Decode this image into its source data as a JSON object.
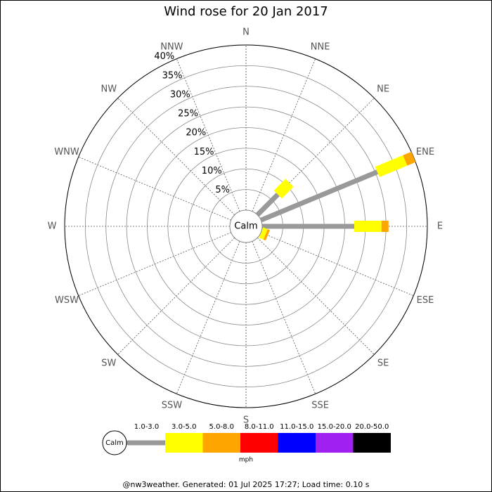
{
  "chart_data": {
    "type": "windrose",
    "title": "Wind rose for 20 Jan 2017",
    "categories": [
      "N",
      "NNE",
      "NE",
      "ENE",
      "E",
      "ESE",
      "SE",
      "SSE",
      "S",
      "SSW",
      "SW",
      "WSW",
      "W",
      "WNW",
      "NW",
      "NNW"
    ],
    "calm_label": "Calm",
    "unit": "mph",
    "rlim": [
      0,
      40
    ],
    "rticks": [
      {
        "value": 5,
        "label": "5%"
      },
      {
        "value": 10,
        "label": "10%"
      },
      {
        "value": 15,
        "label": "15%"
      },
      {
        "value": 20,
        "label": "20%"
      },
      {
        "value": 25,
        "label": "25%"
      },
      {
        "value": 30,
        "label": "30%"
      },
      {
        "value": 35,
        "label": "35%"
      },
      {
        "value": 40,
        "label": "40%"
      }
    ],
    "series": [
      {
        "name": "1.0-3.0",
        "color": "#999999",
        "values": [
          0,
          0,
          7,
          30.5,
          22.3,
          0,
          0,
          0,
          0,
          0,
          0,
          0,
          0,
          0,
          0,
          0
        ]
      },
      {
        "name": "3.0-5.0",
        "color": "#ffff00",
        "values": [
          0,
          0,
          4,
          7.3,
          6.6,
          1.2,
          0,
          0,
          0,
          0,
          0,
          0,
          0,
          0,
          0,
          0
        ]
      },
      {
        "name": "5.0-8.0",
        "color": "#ffa500",
        "values": [
          0,
          0,
          0,
          2.2,
          1.7,
          0.6,
          0,
          0,
          0,
          0,
          0,
          0,
          0,
          0,
          0,
          0
        ]
      },
      {
        "name": "8.0-11.0",
        "color": "#ff0000",
        "values": [
          0,
          0,
          0,
          0,
          0,
          0,
          0,
          0,
          0,
          0,
          0,
          0,
          0,
          0,
          0,
          0
        ]
      },
      {
        "name": "11.0-15.0",
        "color": "#0000ff",
        "values": [
          0,
          0,
          0,
          0,
          0,
          0,
          0,
          0,
          0,
          0,
          0,
          0,
          0,
          0,
          0,
          0
        ]
      },
      {
        "name": "15.0-20.0",
        "color": "#a020f0",
        "values": [
          0,
          0,
          0,
          0,
          0,
          0,
          0,
          0,
          0,
          0,
          0,
          0,
          0,
          0,
          0,
          0
        ]
      },
      {
        "name": "20.0-50.0",
        "color": "#000000",
        "values": [
          0,
          0,
          0,
          0,
          0,
          0,
          0,
          0,
          0,
          0,
          0,
          0,
          0,
          0,
          0,
          0
        ]
      }
    ],
    "footer": "@nw3weather. Generated: 01 Jul 2025 17:27; Load time: 0.10 s"
  }
}
